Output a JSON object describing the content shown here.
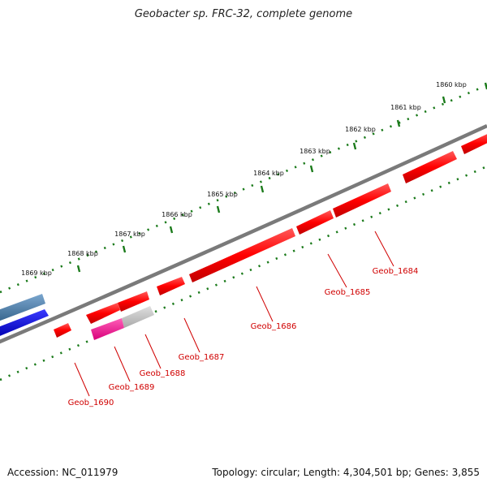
{
  "title": "Geobacter sp. FRC-32, complete genome",
  "footer": {
    "accession": "Accession: NC_011979",
    "topology": "Topology: circular; Length: 4,304,501 bp; Genes: 3,855"
  },
  "kbp_ticks": [
    {
      "label": "1860 kbp"
    },
    {
      "label": "1861 kbp"
    },
    {
      "label": "1862 kbp"
    },
    {
      "label": "1863 kbp"
    },
    {
      "label": "1864 kbp"
    },
    {
      "label": "1865 kbp"
    },
    {
      "label": "1866 kbp"
    },
    {
      "label": "1867 kbp"
    },
    {
      "label": "1868 kbp"
    },
    {
      "label": "1869 kbp"
    }
  ],
  "gene_labels": [
    {
      "label": "Geob_1684"
    },
    {
      "label": "Geob_1685"
    },
    {
      "label": "Geob_1686"
    },
    {
      "label": "Geob_1687"
    },
    {
      "label": "Geob_1688"
    },
    {
      "label": "Geob_1689"
    },
    {
      "label": "Geob_1690"
    }
  ],
  "colors": {
    "forward_gene": "#ff0000",
    "backbone": "#808080",
    "tick_ring": "#1a7a1a",
    "label_text": "#d00000",
    "steel_blue_gene": "#4682b4",
    "blue_gene": "#0000ee",
    "magenta_gene": "#ff1493",
    "grey_gene": "#c0c0c0"
  }
}
